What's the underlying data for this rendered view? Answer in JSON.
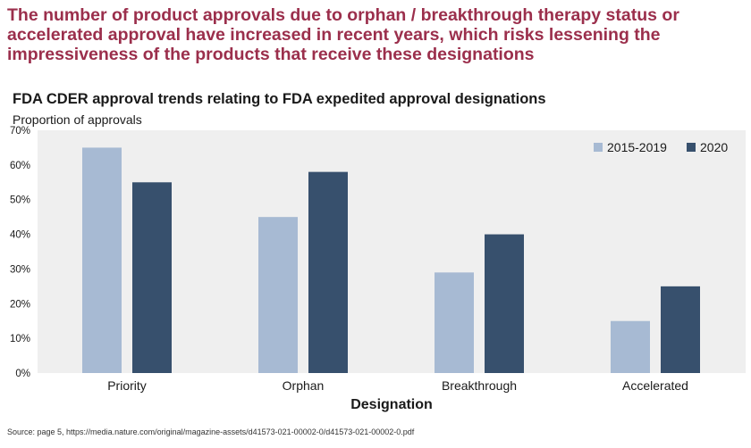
{
  "headline": "The number of product approvals due to orphan / breakthrough therapy status or accelerated approval have increased in recent years, which risks lessening the impressiveness of the products that receive these designations",
  "source": "Source: page 5, https://media.nature.com/original/magazine-assets/d41573-021-00002-0/d41573-021-00002-0.pdf",
  "colors": {
    "headline": "#9b2f4c",
    "plot_background": "#efefef",
    "series_2015_2019": "#a7bad3",
    "series_2020": "#37506d"
  },
  "chart_data": {
    "type": "bar",
    "title": "FDA CDER approval trends relating to FDA expedited approval designations",
    "subtitle": "Proportion of approvals",
    "xlabel": "Designation",
    "ylabel": "",
    "categories": [
      "Priority",
      "Orphan",
      "Breakthrough",
      "Accelerated"
    ],
    "series": [
      {
        "name": "2015-2019",
        "values": [
          65,
          45,
          29,
          15
        ]
      },
      {
        "name": "2020",
        "values": [
          55,
          58,
          40,
          25
        ]
      }
    ],
    "ylim": [
      0,
      70
    ],
    "yticks": [
      "0%",
      "10%",
      "20%",
      "30%",
      "40%",
      "50%",
      "60%",
      "70%"
    ],
    "grid": false,
    "legend": "top-right"
  }
}
